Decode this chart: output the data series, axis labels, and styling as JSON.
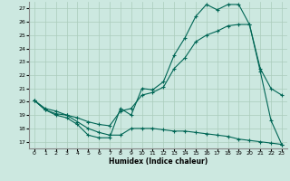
{
  "xlabel": "Humidex (Indice chaleur)",
  "xlim": [
    -0.5,
    23.5
  ],
  "ylim": [
    16.5,
    27.5
  ],
  "yticks": [
    17,
    18,
    19,
    20,
    21,
    22,
    23,
    24,
    25,
    26,
    27
  ],
  "xticks": [
    0,
    1,
    2,
    3,
    4,
    5,
    6,
    7,
    8,
    9,
    10,
    11,
    12,
    13,
    14,
    15,
    16,
    17,
    18,
    19,
    20,
    21,
    22,
    23
  ],
  "bg_color": "#cce8e0",
  "grid_color": "#aaccbb",
  "line_color": "#006655",
  "line1_x": [
    0,
    1,
    2,
    3,
    4,
    5,
    6,
    7,
    8,
    9,
    10,
    11,
    12,
    13,
    14,
    15,
    16,
    17,
    18,
    19,
    20,
    21,
    22,
    23
  ],
  "line1_y": [
    20.1,
    19.4,
    19.0,
    18.8,
    18.3,
    17.5,
    17.3,
    17.3,
    19.5,
    19.0,
    21.0,
    20.9,
    21.5,
    23.5,
    24.8,
    26.4,
    27.3,
    26.9,
    27.3,
    27.3,
    25.8,
    22.3,
    18.6,
    16.8
  ],
  "line2_x": [
    0,
    1,
    2,
    3,
    4,
    5,
    6,
    7,
    8,
    9,
    10,
    11,
    12,
    13,
    14,
    15,
    16,
    17,
    18,
    19,
    20,
    21,
    22,
    23
  ],
  "line2_y": [
    20.1,
    19.4,
    19.1,
    19.0,
    18.8,
    18.5,
    18.3,
    18.2,
    19.3,
    19.5,
    20.5,
    20.7,
    21.1,
    22.5,
    23.3,
    24.5,
    25.0,
    25.3,
    25.7,
    25.8,
    25.8,
    22.5,
    21.0,
    20.5
  ],
  "line3_x": [
    0,
    1,
    2,
    3,
    4,
    5,
    6,
    7,
    8,
    9,
    10,
    11,
    12,
    13,
    14,
    15,
    16,
    17,
    18,
    19,
    20,
    21,
    22,
    23
  ],
  "line3_y": [
    20.1,
    19.5,
    19.3,
    19.0,
    18.5,
    18.0,
    17.7,
    17.5,
    17.5,
    18.0,
    18.0,
    18.0,
    17.9,
    17.8,
    17.8,
    17.7,
    17.6,
    17.5,
    17.4,
    17.2,
    17.1,
    17.0,
    16.9,
    16.8
  ]
}
